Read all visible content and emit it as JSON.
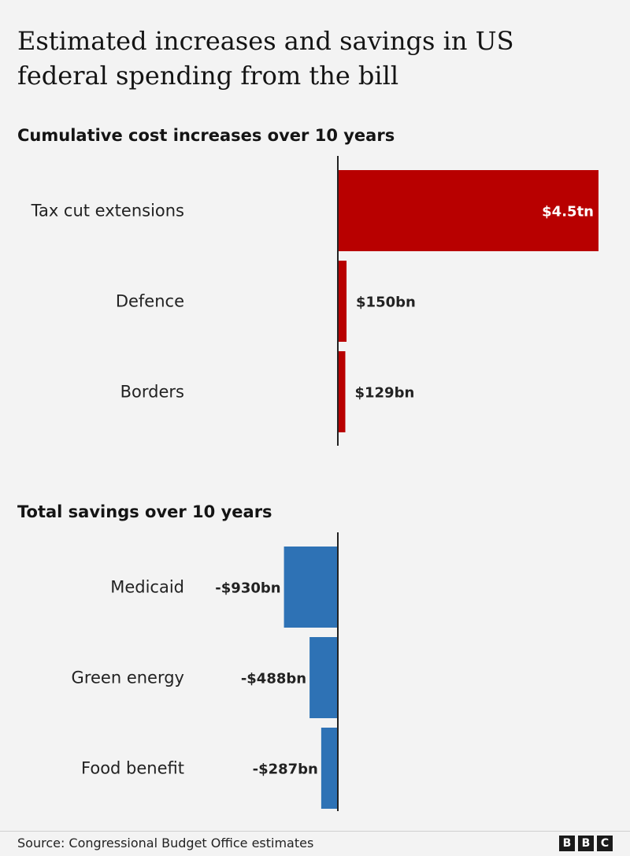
{
  "title": "Estimated increases and savings in US federal spending from the bill",
  "source": "Source: Congressional Budget Office estimates",
  "logo_letters": [
    "B",
    "B",
    "C"
  ],
  "colors": {
    "increase": "#b80000",
    "saving": "#2e72b5",
    "axis": "#222222"
  },
  "chart_data": [
    {
      "type": "bar",
      "orientation": "horizontal",
      "title": "Cumulative cost increases over 10 years",
      "unit": "billion USD",
      "categories": [
        "Tax cut extensions",
        "Defence",
        "Borders"
      ],
      "values": [
        4500,
        150,
        129
      ],
      "data_labels": [
        "$4.5tn",
        "$150bn",
        "$129bn"
      ]
    },
    {
      "type": "bar",
      "orientation": "horizontal",
      "title": "Total savings over 10 years",
      "unit": "billion USD",
      "categories": [
        "Medicaid",
        "Green energy",
        "Food benefit"
      ],
      "values": [
        -930,
        -488,
        -287
      ],
      "data_labels": [
        "-$930bn",
        "-$488bn",
        "-$287bn"
      ]
    }
  ]
}
